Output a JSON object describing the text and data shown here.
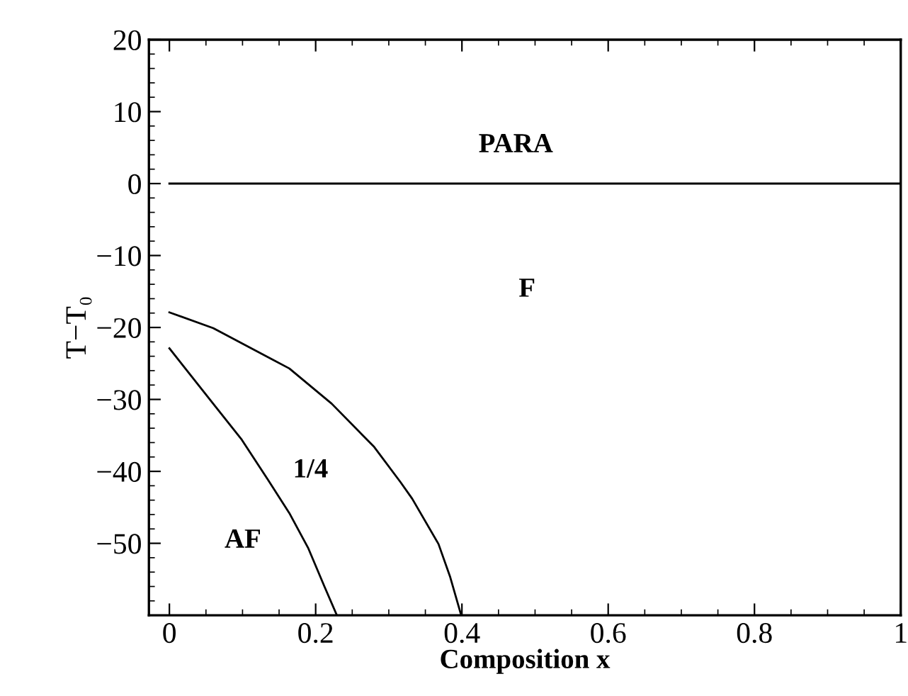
{
  "chart_data": {
    "type": "line",
    "xlabel": "Composition x",
    "ylabel": "T−T₀",
    "xlim": [
      -0.028,
      1.0
    ],
    "ylim": [
      -60,
      20
    ],
    "xticks": [
      0,
      0.2,
      0.4,
      0.6,
      0.8,
      1
    ],
    "yticks": [
      20,
      10,
      0,
      -10,
      -20,
      -30,
      -40,
      -50
    ],
    "grid": false,
    "legend": false,
    "marker": "none",
    "line_style": "solid",
    "series": [
      {
        "color": "#000000",
        "x": [
          0,
          1
        ],
        "values": [
          0,
          0
        ]
      },
      {
        "color": "#000000",
        "x": [
          0,
          0.06,
          0.164,
          0.222,
          0.28,
          0.316,
          0.332,
          0.368,
          0.384,
          0.399
        ],
        "values": [
          -17.9,
          -20.1,
          -25.7,
          -30.6,
          -36.6,
          -41.5,
          -43.8,
          -50.1,
          -54.7,
          -60
        ]
      },
      {
        "color": "#000000",
        "x": [
          0,
          0.063,
          0.099,
          0.135,
          0.164,
          0.19,
          0.212,
          0.229
        ],
        "values": [
          -22.9,
          -31,
          -35.6,
          -41.2,
          -45.8,
          -50.7,
          -56,
          -60
        ]
      }
    ],
    "annotations": [
      "PARA",
      "F",
      "1/4",
      "AF"
    ]
  }
}
